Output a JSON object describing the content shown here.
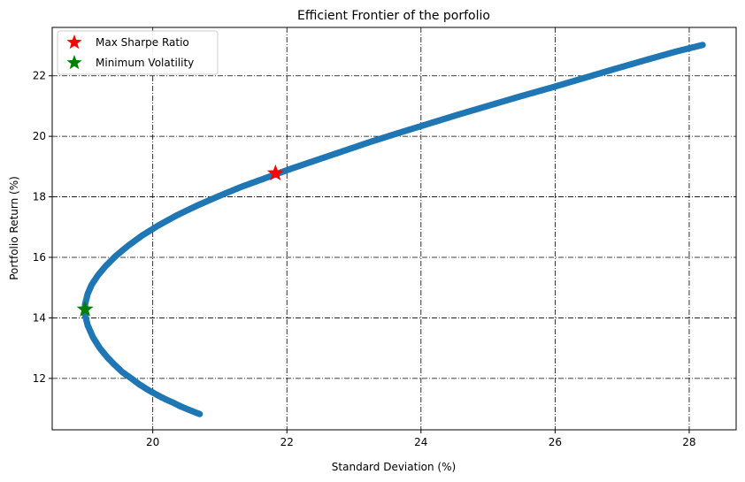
{
  "chart_data": {
    "type": "scatter",
    "title": "Efficient Frontier of the porfolio",
    "xlabel": "Standard Deviation (%)",
    "ylabel": "Portfolio Return (%)",
    "xlim": [
      18.5,
      28.7
    ],
    "ylim": [
      10.3,
      23.6
    ],
    "xticks": [
      20,
      22,
      24,
      26,
      28
    ],
    "yticks": [
      12,
      14,
      16,
      18,
      20,
      22
    ],
    "grid": true,
    "legend_position": "top-left",
    "frontier_color": "#1f77b4",
    "frontier_points": [
      [
        20.7,
        10.82
      ],
      [
        20.55,
        10.95
      ],
      [
        20.42,
        11.07
      ],
      [
        20.3,
        11.2
      ],
      [
        20.17,
        11.33
      ],
      [
        20.05,
        11.47
      ],
      [
        19.93,
        11.62
      ],
      [
        19.8,
        11.8
      ],
      [
        19.68,
        12.0
      ],
      [
        19.55,
        12.2
      ],
      [
        19.43,
        12.45
      ],
      [
        19.32,
        12.7
      ],
      [
        19.21,
        13.0
      ],
      [
        19.11,
        13.35
      ],
      [
        19.03,
        13.75
      ],
      [
        18.99,
        14.1
      ],
      [
        18.99,
        14.45
      ],
      [
        19.03,
        14.8
      ],
      [
        19.09,
        15.1
      ],
      [
        19.18,
        15.4
      ],
      [
        19.3,
        15.72
      ],
      [
        19.45,
        16.05
      ],
      [
        19.63,
        16.38
      ],
      [
        19.84,
        16.72
      ],
      [
        20.08,
        17.05
      ],
      [
        20.35,
        17.38
      ],
      [
        20.65,
        17.7
      ],
      [
        20.98,
        18.02
      ],
      [
        21.32,
        18.33
      ],
      [
        21.68,
        18.62
      ],
      [
        22.05,
        18.92
      ],
      [
        22.45,
        19.22
      ],
      [
        22.85,
        19.52
      ],
      [
        23.25,
        19.82
      ],
      [
        23.68,
        20.12
      ],
      [
        24.12,
        20.42
      ],
      [
        24.56,
        20.72
      ],
      [
        25.02,
        21.02
      ],
      [
        25.48,
        21.32
      ],
      [
        25.96,
        21.62
      ],
      [
        26.42,
        21.92
      ],
      [
        26.88,
        22.22
      ],
      [
        27.35,
        22.52
      ],
      [
        27.8,
        22.8
      ],
      [
        28.2,
        23.02
      ]
    ],
    "max_sharpe": {
      "name": "Max Sharpe Ratio",
      "x": 21.83,
      "y": 18.78,
      "color": "#ff0000"
    },
    "min_volatility": {
      "name": "Minimum Volatility",
      "x": 18.99,
      "y": 14.28,
      "color": "#008000"
    }
  }
}
